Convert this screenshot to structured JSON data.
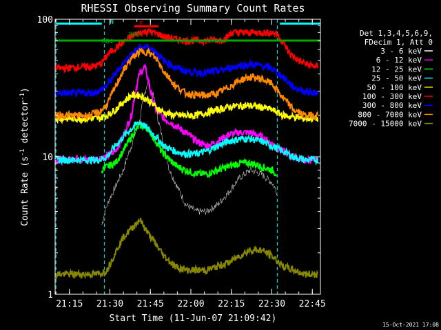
{
  "chart_data": {
    "type": "line",
    "title": "RHESSI Observing Summary Count Rates",
    "xlabel": "Start Time (11-Jun-07 21:09:42)",
    "ylabel": "Count Rate (s⁻¹ detector⁻¹)",
    "ylabel_main": "Count Rate (s",
    "ylabel_sup1": "-1",
    "ylabel_mid": " detector",
    "ylabel_sup2": "-1",
    "ylabel_end": ")",
    "yscale": "log",
    "ylim": [
      1,
      100
    ],
    "xlim": [
      "21:09:42",
      "22:48:00"
    ],
    "x_ticks": [
      "21:15",
      "21:30",
      "21:45",
      "22:00",
      "22:15",
      "22:30",
      "22:45"
    ],
    "y_ticks": [
      "1",
      "10",
      "100"
    ],
    "timestamp": "15-Oct-2021 17:08",
    "legend_header": [
      "Det 1,3,4,5,6,9,",
      "FDecim 1, Att 0"
    ],
    "flag_labels": [
      {
        "text": "N",
        "x": "21:30",
        "y": 93,
        "color": "#00ffff"
      },
      {
        "text": "F",
        "x": "21:41",
        "y": 90,
        "color": "#ff0000"
      },
      {
        "text": "RDO",
        "x": "21:37",
        "y": 75,
        "color": "#00aa00"
      },
      {
        "text": "RB4",
        "x": "21:27",
        "y": 67,
        "color": "#00aa00"
      }
    ],
    "flag_bars": [
      {
        "name": "N",
        "color": "#00ffff",
        "y": 93,
        "segments": [
          [
            "21:10",
            "21:27"
          ],
          [
            "22:33",
            "22:48"
          ]
        ]
      },
      {
        "name": "F",
        "color": "#ff0000",
        "y": 89,
        "segments": [
          [
            "21:39",
            "21:48"
          ]
        ]
      },
      {
        "name": "RB4",
        "color": "#00aa00",
        "y": 70,
        "segments": [
          [
            "21:10",
            "22:48"
          ]
        ]
      }
    ],
    "vlines": [
      {
        "x": "21:10",
        "color": "#00ffff"
      },
      {
        "x": "21:28",
        "color": "#00ffff"
      },
      {
        "x": "22:32",
        "color": "#00ffff"
      },
      {
        "x": "22:48",
        "color": "#00ffff"
      }
    ],
    "series": [
      {
        "name": "3 - 6 keV",
        "color": "#000000",
        "x": [
          "21:27",
          "21:29",
          "21:32",
          "21:35",
          "21:38",
          "21:41",
          "21:44",
          "21:46",
          "21:48",
          "21:50",
          "21:52",
          "21:55",
          "21:58",
          "22:02",
          "22:06",
          "22:10",
          "22:14",
          "22:18",
          "22:22",
          "22:26",
          "22:30",
          "22:32"
        ],
        "values": [
          3.2,
          4.5,
          6,
          8,
          12,
          18,
          35,
          28,
          18,
          12,
          8,
          6,
          4.5,
          4,
          4,
          4.5,
          5.5,
          7,
          8,
          7.5,
          6.5,
          5.5
        ]
      },
      {
        "name": "6 - 12 keV",
        "color": "#ff00ff",
        "x": [
          "21:10",
          "21:14",
          "21:18",
          "21:22",
          "21:26",
          "21:29",
          "21:32",
          "21:35",
          "21:38",
          "21:41",
          "21:43",
          "21:45",
          "21:47",
          "21:50",
          "21:54",
          "21:58",
          "22:02",
          "22:06",
          "22:10",
          "22:14",
          "22:18",
          "22:22",
          "22:26",
          "22:30",
          "22:34",
          "22:38",
          "22:42",
          "22:47"
        ],
        "values": [
          9.5,
          9.5,
          9.8,
          9.5,
          9.8,
          10,
          11,
          14,
          20,
          40,
          45,
          30,
          22,
          19,
          17,
          15,
          13,
          12,
          13,
          14.5,
          15,
          15,
          14,
          12.5,
          11,
          10,
          9.5,
          9.5
        ]
      },
      {
        "name": "12 - 25 keV",
        "color": "#00ff00",
        "x": [
          "21:27",
          "21:29",
          "21:32",
          "21:35",
          "21:38",
          "21:41",
          "21:44",
          "21:46",
          "21:49",
          "21:52",
          "21:55",
          "21:58",
          "22:02",
          "22:06",
          "22:10",
          "22:14",
          "22:18",
          "22:22",
          "22:26",
          "22:30",
          "22:32"
        ],
        "values": [
          8,
          8.5,
          9,
          11,
          14,
          17,
          16,
          14,
          11,
          9.5,
          8.5,
          8,
          7.5,
          7.5,
          8,
          8.5,
          9,
          9,
          8.5,
          8,
          7.5
        ]
      },
      {
        "name": "25 - 50 keV",
        "color": "#00ffff",
        "x": [
          "21:10",
          "21:14",
          "21:18",
          "21:22",
          "21:26",
          "21:29",
          "21:32",
          "21:35",
          "21:38",
          "21:41",
          "21:44",
          "21:47",
          "21:50",
          "21:54",
          "21:58",
          "22:02",
          "22:06",
          "22:10",
          "22:14",
          "22:18",
          "22:22",
          "22:26",
          "22:30",
          "22:34",
          "22:38",
          "22:42",
          "22:47"
        ],
        "values": [
          9.5,
          9.5,
          9.5,
          9.5,
          9.5,
          10,
          12,
          14,
          16,
          18,
          16,
          14,
          12,
          11,
          10.5,
          10.5,
          11,
          12,
          13,
          13.5,
          13.5,
          13,
          12,
          11,
          10,
          9.5,
          9.5
        ]
      },
      {
        "name": "50 - 100 keV",
        "color": "#ffff00",
        "x": [
          "21:10",
          "21:14",
          "21:18",
          "21:22",
          "21:26",
          "21:29",
          "21:32",
          "21:35",
          "21:38",
          "21:41",
          "21:44",
          "21:47",
          "21:50",
          "21:54",
          "21:58",
          "22:02",
          "22:06",
          "22:10",
          "22:14",
          "22:18",
          "22:22",
          "22:26",
          "22:30",
          "22:34",
          "22:38",
          "22:42",
          "22:47"
        ],
        "values": [
          19,
          19,
          19,
          19,
          19,
          20,
          22,
          25,
          28,
          28,
          26,
          23,
          21,
          20,
          20,
          20,
          21,
          22,
          23,
          23.5,
          23.5,
          23,
          22,
          20,
          19.5,
          19,
          19
        ]
      },
      {
        "name": "100 - 300 keV",
        "color": "#ff0000",
        "x": [
          "21:10",
          "21:14",
          "21:18",
          "21:22",
          "21:25",
          "21:27",
          "21:29",
          "21:32",
          "21:35",
          "21:38",
          "21:41",
          "21:44",
          "21:46",
          "21:48",
          "21:50",
          "21:54",
          "21:58",
          "22:02",
          "22:06",
          "22:10",
          "22:13",
          "22:15",
          "22:20",
          "22:25",
          "22:30",
          "22:32",
          "22:34",
          "22:37",
          "22:40",
          "22:43",
          "22:47"
        ],
        "values": [
          44,
          44,
          45,
          45,
          46,
          48,
          55,
          62,
          68,
          75,
          80,
          82,
          80,
          78,
          75,
          72,
          70,
          70,
          70,
          71,
          72,
          80,
          80,
          80,
          80,
          78,
          68,
          55,
          50,
          47,
          45
        ]
      },
      {
        "name": "300 - 800 keV",
        "color": "#0000ff",
        "x": [
          "21:10",
          "21:14",
          "21:18",
          "21:22",
          "21:26",
          "21:29",
          "21:32",
          "21:35",
          "21:38",
          "21:41",
          "21:44",
          "21:47",
          "21:50",
          "21:54",
          "21:58",
          "22:02",
          "22:06",
          "22:10",
          "22:14",
          "22:18",
          "22:22",
          "22:26",
          "22:30",
          "22:34",
          "22:38",
          "22:42",
          "22:47"
        ],
        "values": [
          29,
          29,
          29,
          29,
          30,
          33,
          40,
          48,
          56,
          62,
          63,
          58,
          50,
          45,
          42,
          41,
          41,
          42,
          44,
          46,
          47,
          46,
          44,
          38,
          32,
          30,
          29
        ]
      },
      {
        "name": "800 - 7000 keV",
        "color": "#ff8800",
        "x": [
          "21:10",
          "21:14",
          "21:18",
          "21:22",
          "21:26",
          "21:29",
          "21:32",
          "21:35",
          "21:38",
          "21:41",
          "21:44",
          "21:47",
          "21:50",
          "21:54",
          "21:58",
          "22:02",
          "22:06",
          "22:10",
          "22:14",
          "22:18",
          "22:22",
          "22:26",
          "22:30",
          "22:34",
          "22:38",
          "22:42",
          "22:47"
        ],
        "values": [
          20,
          20,
          20,
          20,
          21,
          24,
          32,
          42,
          52,
          58,
          58,
          52,
          42,
          33,
          29,
          28,
          28,
          29,
          32,
          36,
          38,
          37,
          34,
          27,
          22,
          20,
          20
        ]
      },
      {
        "name": "7000 - 15000 keV",
        "color": "#888800",
        "x": [
          "21:10",
          "21:14",
          "21:18",
          "21:22",
          "21:26",
          "21:29",
          "21:32",
          "21:35",
          "21:38",
          "21:41",
          "21:44",
          "21:47",
          "21:50",
          "21:54",
          "21:58",
          "22:02",
          "22:06",
          "22:10",
          "22:14",
          "22:18",
          "22:22",
          "22:26",
          "22:30",
          "22:34",
          "22:38",
          "22:42",
          "22:47"
        ],
        "values": [
          1.4,
          1.4,
          1.4,
          1.4,
          1.4,
          1.5,
          2,
          2.6,
          3,
          3.5,
          2.8,
          2.3,
          1.9,
          1.6,
          1.5,
          1.5,
          1.5,
          1.6,
          1.7,
          1.9,
          2.1,
          2.1,
          1.9,
          1.6,
          1.5,
          1.4,
          1.4
        ]
      }
    ]
  }
}
